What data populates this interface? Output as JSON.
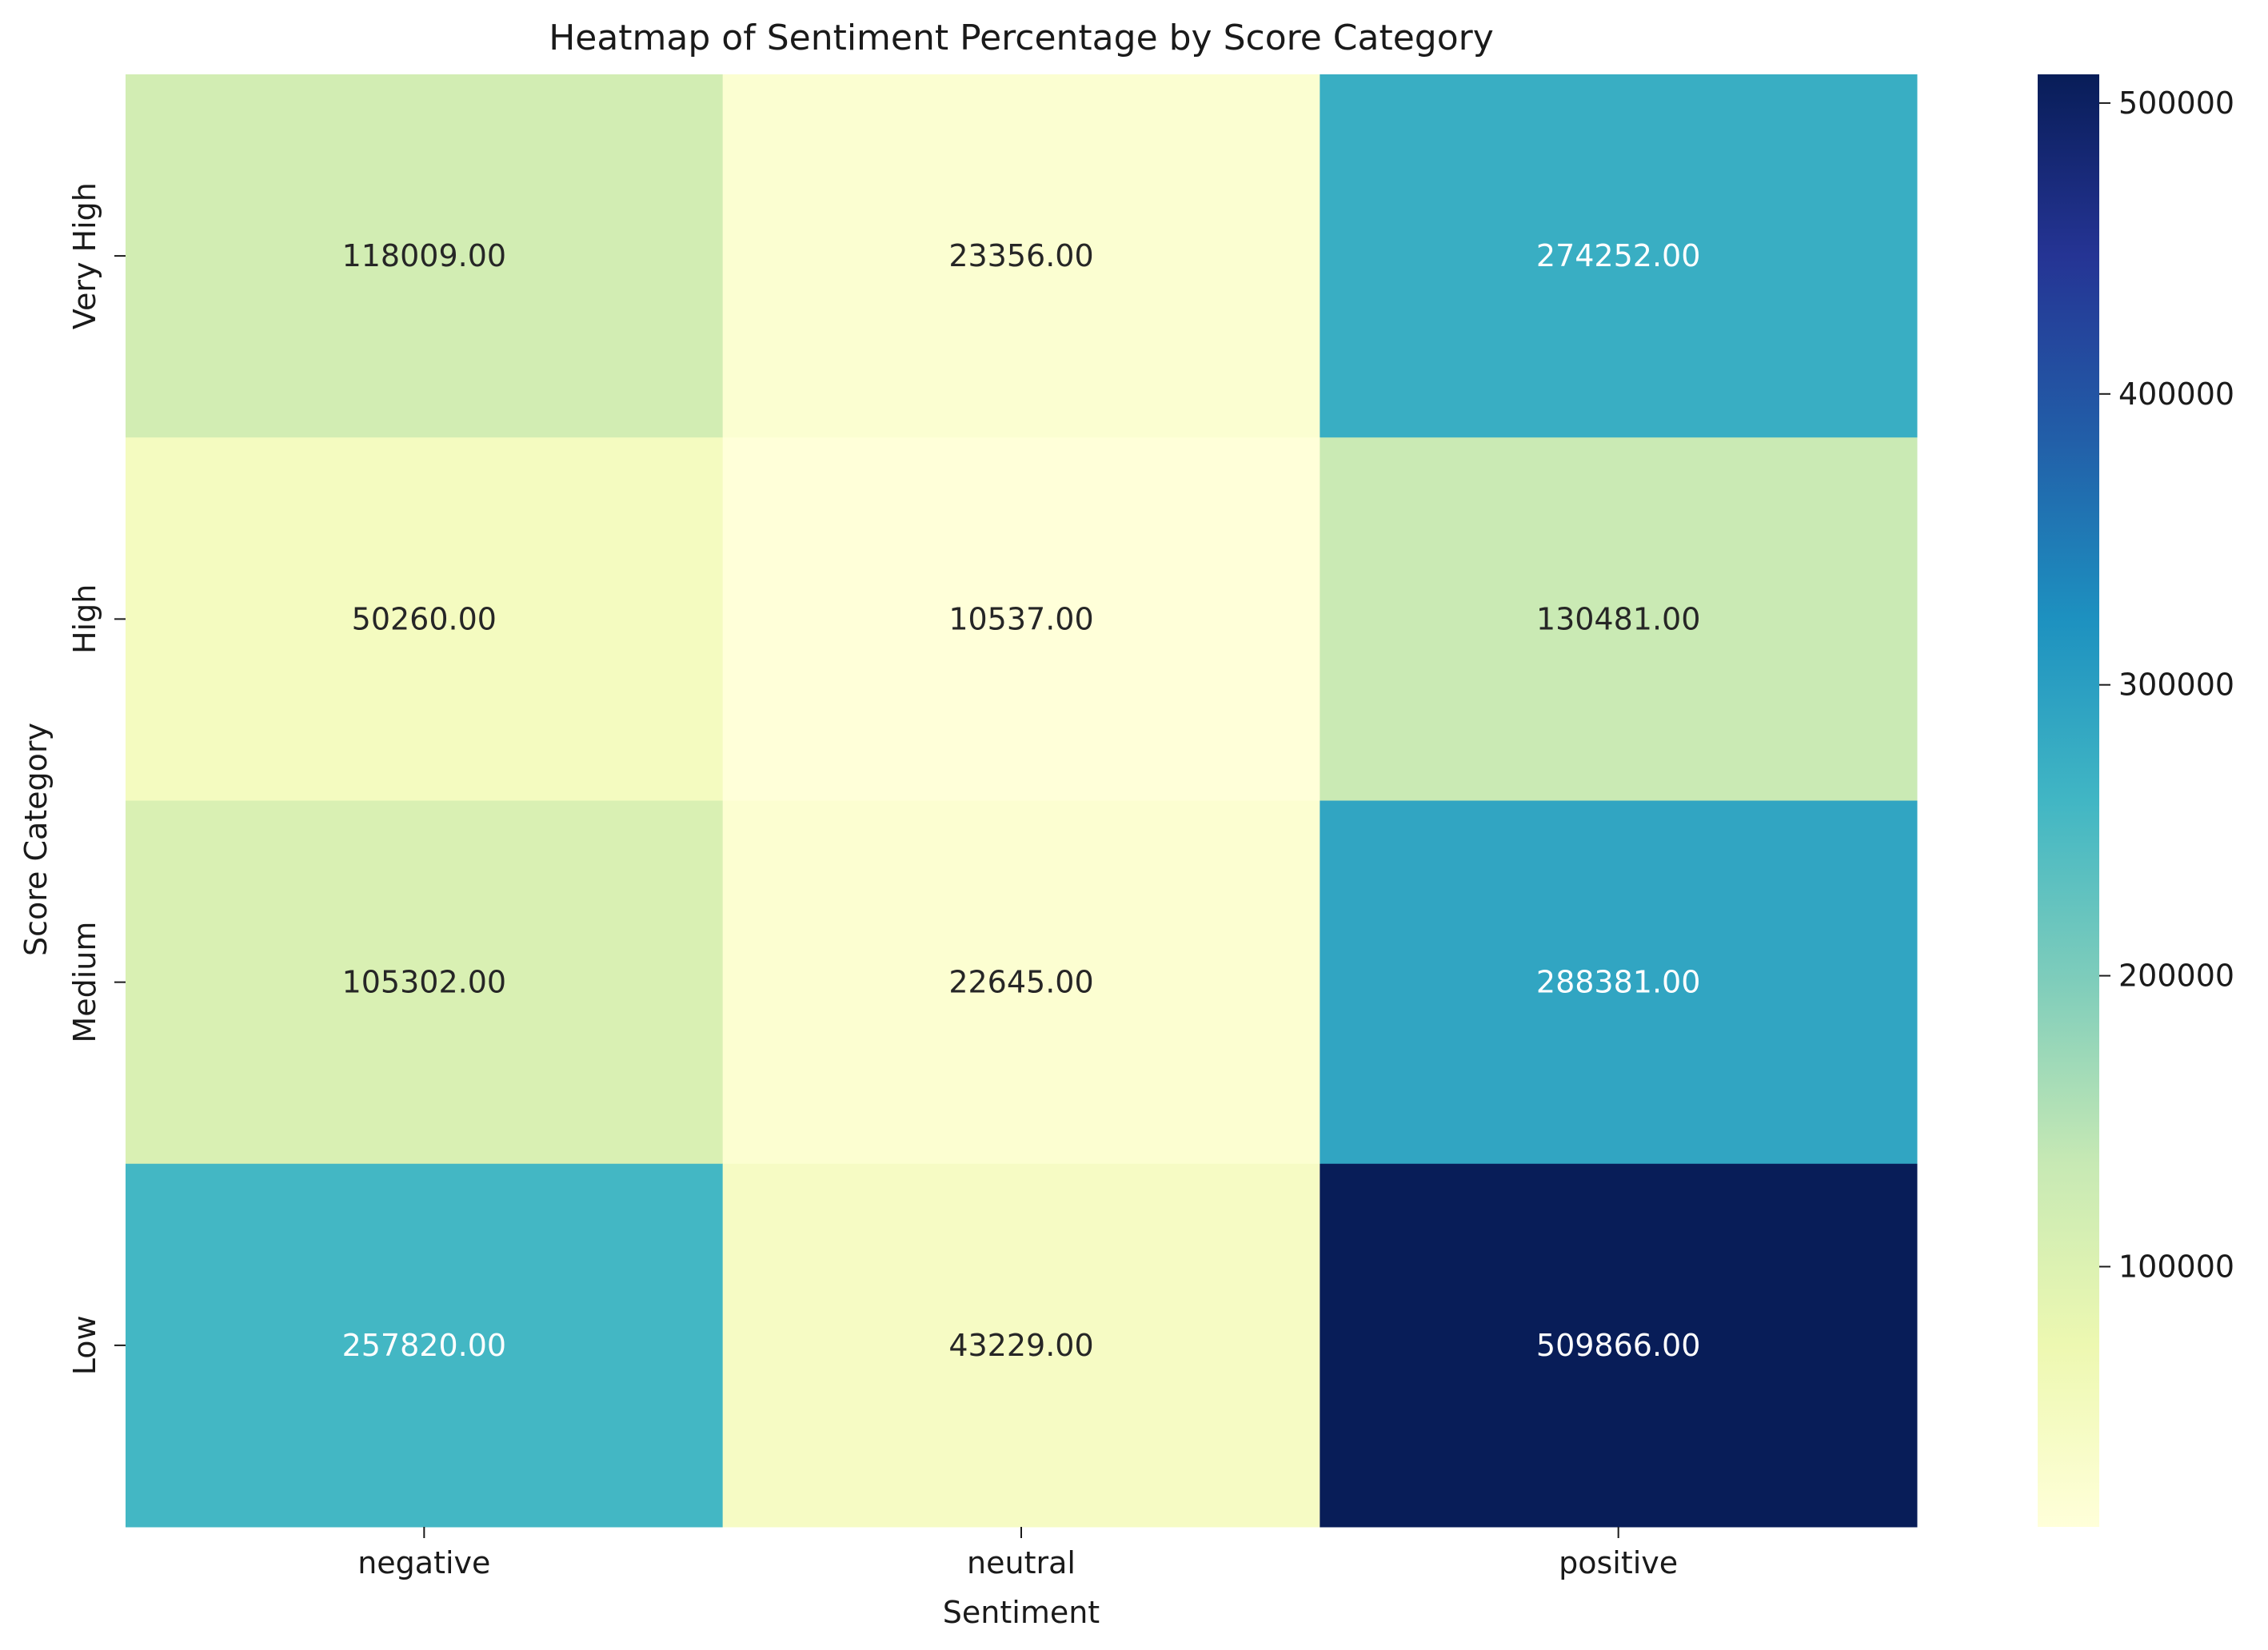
{
  "chart_data": {
    "type": "heatmap",
    "title": "Heatmap of Sentiment Percentage by Score Category",
    "xlabel": "Sentiment",
    "ylabel": "Score Category",
    "x_categories": [
      "negative",
      "neutral",
      "positive"
    ],
    "y_categories": [
      "Very High",
      "High",
      "Medium",
      "Low"
    ],
    "values": [
      [
        118009,
        23356,
        274252
      ],
      [
        50260,
        10537,
        130481
      ],
      [
        105302,
        22645,
        288381
      ],
      [
        257820,
        43229,
        509866
      ]
    ],
    "cell_labels": [
      [
        "118009.00",
        "23356.00",
        "274252.00"
      ],
      [
        "50260.00",
        "10537.00",
        "130481.00"
      ],
      [
        "105302.00",
        "22645.00",
        "288381.00"
      ],
      [
        "257820.00",
        "43229.00",
        "509866.00"
      ]
    ],
    "colorbar": {
      "colormap": "YlGnBu",
      "vmin": 10537,
      "vmax": 509866,
      "ticks": [
        100000,
        200000,
        300000,
        400000,
        500000
      ],
      "tick_labels": [
        "100000",
        "200000",
        "300000",
        "400000",
        "500000"
      ]
    }
  }
}
